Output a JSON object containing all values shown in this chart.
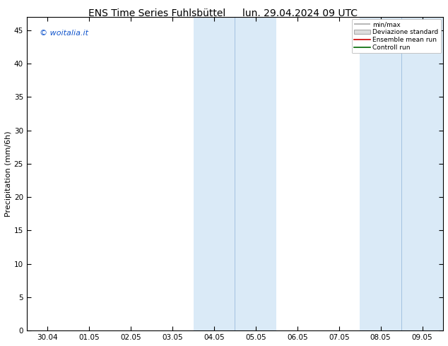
{
  "title_left": "ENS Time Series Fuhlsbüttel",
  "title_right": "lun. 29.04.2024 09 UTC",
  "ylabel": "Precipitation (mm/6h)",
  "watermark": "© woitalia.it",
  "xlim": [
    -0.5,
    9.5
  ],
  "ylim": [
    0,
    47
  ],
  "yticks": [
    0,
    5,
    10,
    15,
    20,
    25,
    30,
    35,
    40,
    45
  ],
  "xtick_labels": [
    "30.04",
    "01.05",
    "02.05",
    "03.05",
    "04.05",
    "05.05",
    "06.05",
    "07.05",
    "08.05",
    "09.05"
  ],
  "xtick_positions": [
    0,
    1,
    2,
    3,
    4,
    5,
    6,
    7,
    8,
    9
  ],
  "shaded_bands": [
    [
      3.5,
      4.5
    ],
    [
      4.5,
      5.5
    ],
    [
      7.5,
      8.5
    ],
    [
      8.5,
      9.5
    ]
  ],
  "shade_color": "#daeaf7",
  "band_dividers": [
    4.5,
    8.5
  ],
  "legend_labels": [
    "min/max",
    "Deviazione standard",
    "Ensemble mean run",
    "Controll run"
  ],
  "legend_line_color": "#aaaaaa",
  "legend_fill_color": "#dddddd",
  "legend_red": "#cc0000",
  "legend_green": "#006600",
  "background_color": "#ffffff",
  "title_fontsize": 10,
  "tick_fontsize": 7.5,
  "ylabel_fontsize": 8,
  "watermark_color": "#1155cc",
  "watermark_fontsize": 8
}
